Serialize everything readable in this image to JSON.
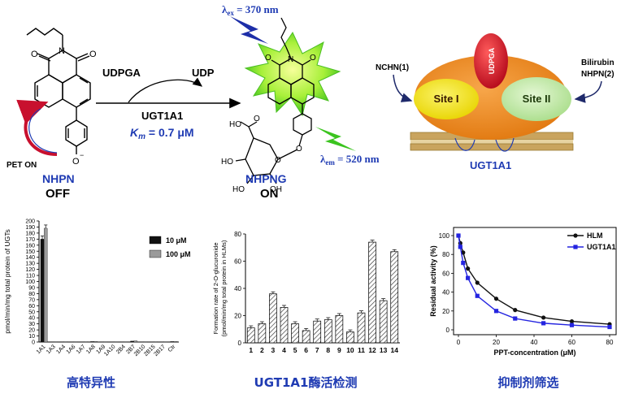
{
  "scheme": {
    "nhpn_label": "NHPN",
    "off_label": "OFF",
    "pet_label": "PET ON",
    "udpga_label": "UDPGA",
    "udp_label": "UDP",
    "enzyme_label": "UGT1A1",
    "km_k": "K",
    "km_m": "m",
    "km_value": " = 0.7 μM",
    "ex_lambda": "λ",
    "ex_sub": "ex",
    "ex_value": " = 370 nm",
    "em_lambda": "λ",
    "em_sub": "em",
    "em_value": " = 520 nm",
    "nhpng_label": "NHPNG",
    "on_label": "ON",
    "atoms": {
      "O": "O",
      "N": "N",
      "OH": "OH",
      "HO": "HO",
      "HOOC": "HO"
    }
  },
  "model": {
    "udpga_label": "UDPGA",
    "site1_label": "Site I",
    "site2_label": "Site II",
    "left_ligand": "NCHN(1)",
    "right_ligand_1": "Bilirubin",
    "right_ligand_2": "NHPN(2)",
    "membrane_label": "UGT1A1",
    "colors": {
      "enzyme": "#f28c1e",
      "site1": "#f2e400",
      "site2": "#c9ecb0",
      "udpga": "#d41f26",
      "label_blue": "#1f3bb3"
    }
  },
  "captions": {
    "left": "高特异性",
    "middle": "UGT1A1酶活检测",
    "right": "抑制剂筛选"
  },
  "chart_data": [
    {
      "type": "bar",
      "ylabel": "pmol/min/mg total protein of UGTs",
      "categories": [
        "1A1",
        "1A3",
        "1A4",
        "1A6",
        "1A7",
        "1A8",
        "1A9",
        "1A10",
        "2B4",
        "2B7",
        "2B10",
        "2B15",
        "2B17",
        "Ctr"
      ],
      "series": [
        {
          "name": "10 μM",
          "color": "#111111",
          "values": [
            170,
            0.5,
            0.5,
            0.5,
            0.5,
            0.8,
            0.5,
            0.5,
            0.5,
            1.5,
            0.5,
            0.5,
            0.5,
            0.8
          ]
        },
        {
          "name": "100 μM",
          "color": "#9a9a9a",
          "values": [
            188,
            0.6,
            0.6,
            0.6,
            0.6,
            1,
            0.6,
            0.6,
            0.6,
            2,
            0.6,
            0.6,
            0.6,
            1
          ]
        }
      ],
      "ylim": [
        0,
        200
      ],
      "yticks": [
        0,
        10,
        20,
        30,
        40,
        50,
        60,
        70,
        80,
        90,
        100,
        110,
        120,
        130,
        140,
        150,
        160,
        170,
        180,
        190,
        200
      ],
      "legend": "top-right"
    },
    {
      "type": "bar",
      "ylabel": "Formation rate of 2-O-glucuronide (pmol/min/mg total protein in HLMs)",
      "categories": [
        "1",
        "2",
        "3",
        "4",
        "5",
        "6",
        "7",
        "8",
        "9",
        "10",
        "11",
        "12",
        "13",
        "14"
      ],
      "values": [
        11,
        14,
        36,
        26,
        14,
        9,
        16,
        17,
        20,
        8,
        22,
        74,
        31,
        67
      ],
      "ylim": [
        0,
        80
      ],
      "yticks": [
        0,
        20,
        40,
        60,
        80
      ]
    },
    {
      "type": "line",
      "xlabel": "PPT-concentration (μM)",
      "ylabel": "Residual activity (%)",
      "series": [
        {
          "name": "HLM",
          "color": "#111111",
          "x": [
            0,
            1,
            2.5,
            5,
            10,
            20,
            30,
            45,
            60,
            80
          ],
          "y": [
            100,
            92,
            82,
            65,
            50,
            33,
            21,
            13,
            9,
            6
          ]
        },
        {
          "name": "UGT1A1",
          "color": "#2424e0",
          "x": [
            0,
            1,
            2.5,
            5,
            10,
            20,
            30,
            45,
            60,
            80
          ],
          "y": [
            100,
            88,
            71,
            55,
            36,
            20,
            12,
            7,
            5,
            3
          ]
        }
      ],
      "xlim": [
        0,
        80
      ],
      "ylim": [
        0,
        100
      ],
      "xticks": [
        0,
        20,
        40,
        60,
        80
      ],
      "yticks": [
        0,
        20,
        40,
        60,
        80,
        100
      ],
      "legend": "top-right"
    }
  ]
}
